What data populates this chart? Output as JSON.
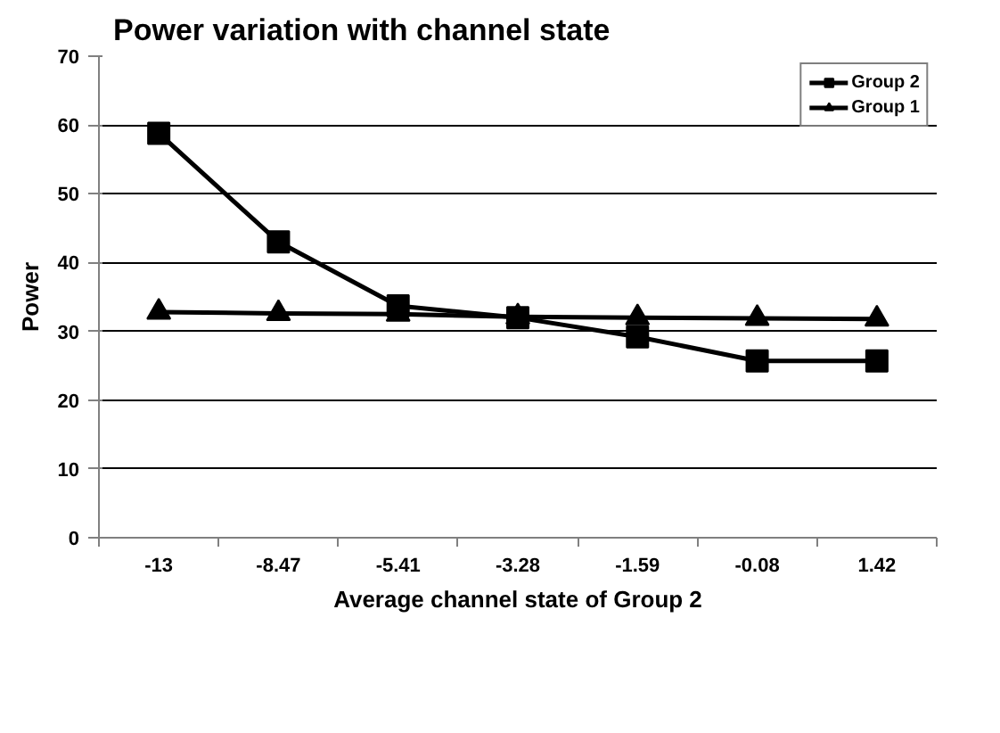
{
  "chart_data": {
    "type": "line",
    "title": "Power variation with channel state",
    "xlabel": "Average channel state of Group 2",
    "ylabel": "Power",
    "categories": [
      "-13",
      "-8.47",
      "-5.41",
      "-3.28",
      "-1.59",
      "-0.08",
      "1.42"
    ],
    "series": [
      {
        "name": "Group 2",
        "color": "#000000",
        "marker": "square",
        "values": [
          58.8,
          43.0,
          33.7,
          32.0,
          29.2,
          25.7,
          25.7
        ]
      },
      {
        "name": "Group 1",
        "color": "#000000",
        "marker": "triangle",
        "values": [
          32.8,
          32.6,
          32.5,
          32.1,
          32.0,
          31.9,
          31.8
        ]
      }
    ],
    "ylim": [
      0,
      70
    ],
    "yticks": [
      0,
      10,
      20,
      30,
      40,
      50,
      60,
      70
    ],
    "grid": "y",
    "legend": "top right",
    "line_style": "solid"
  }
}
